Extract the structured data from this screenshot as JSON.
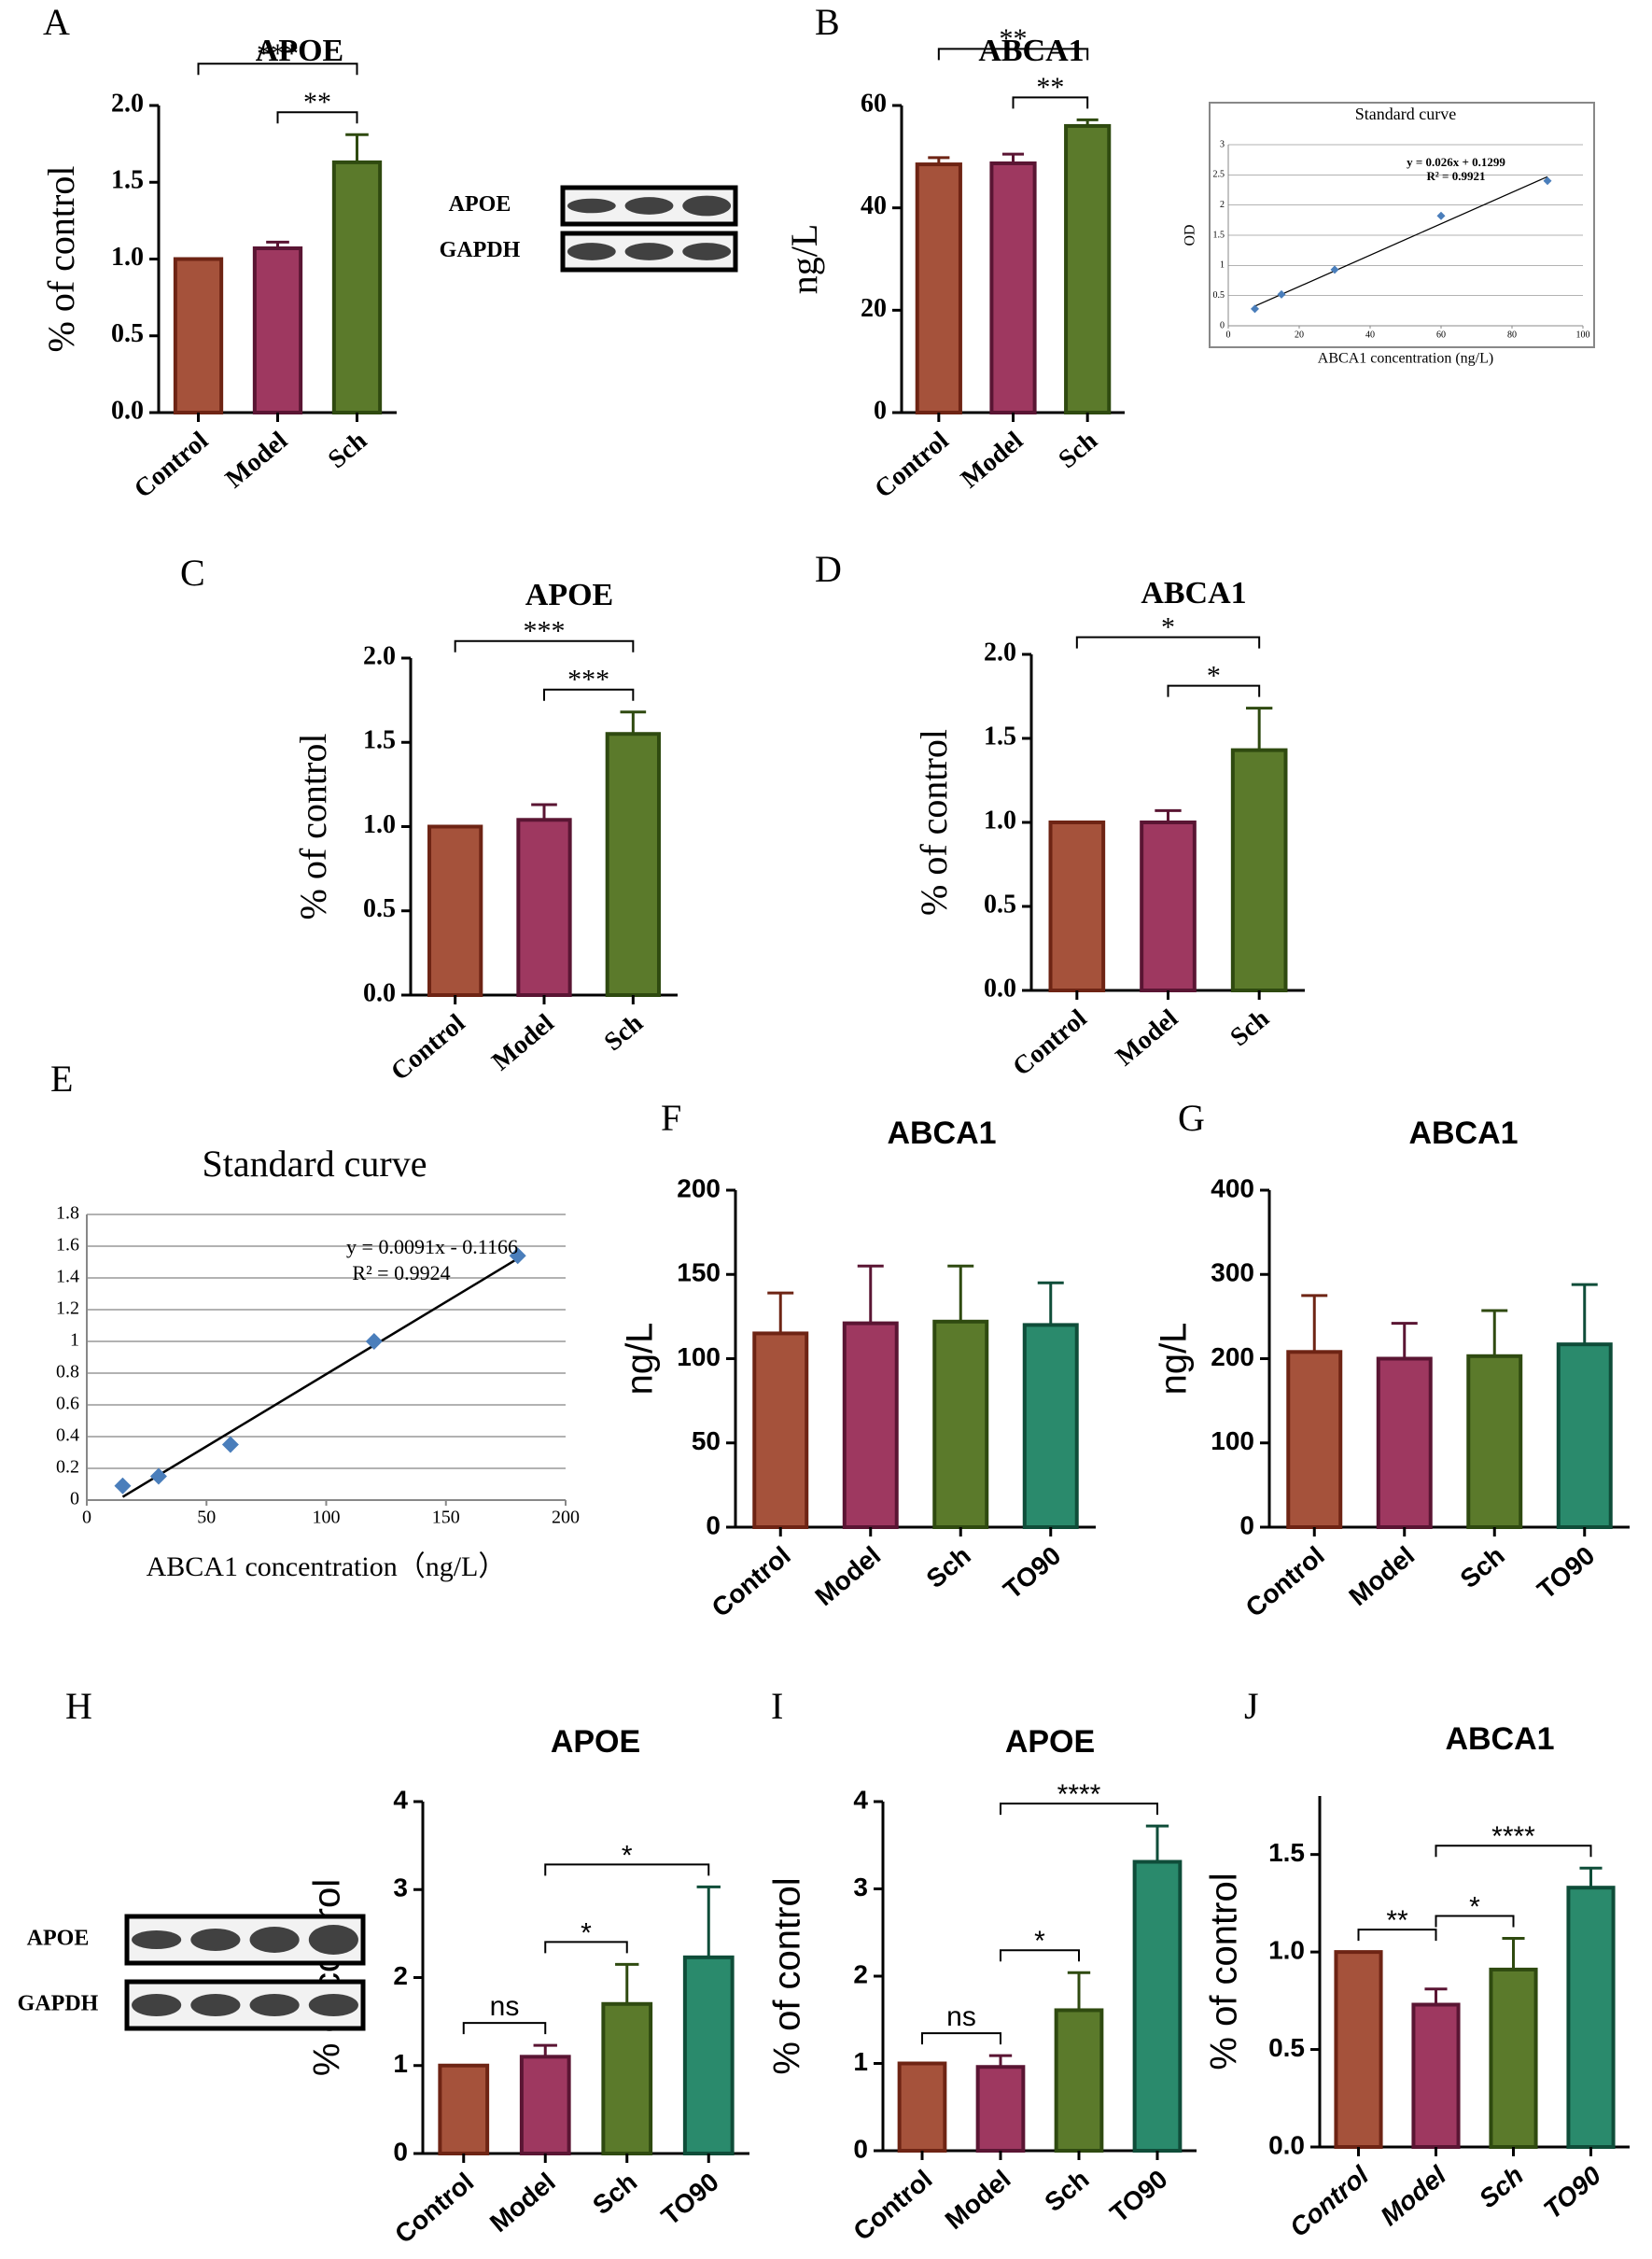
{
  "chart_data": [
    {
      "type": "bar",
      "panel": "A",
      "title": "APOE",
      "ylabel": "% of control",
      "categories": [
        "Control",
        "Model",
        "Sch"
      ],
      "values": [
        1.0,
        1.07,
        1.63
      ],
      "errors": [
        0,
        0.04,
        0.18
      ],
      "colors": [
        "#a5523b",
        "#9e3860",
        "#5b7a2b"
      ],
      "edge_colors": [
        "#6e2414",
        "#5a1533",
        "#2f4a10"
      ],
      "ylim": [
        0,
        2
      ],
      "yticks": [
        {
          "value": 0,
          "label": "0.0"
        },
        0.5,
        {
          "value": 1,
          "label": "1.0"
        },
        1.5,
        {
          "value": 2,
          "label": "2.0"
        }
      ],
      "significance": [
        {
          "from": 0,
          "to": 2,
          "label": "***"
        },
        {
          "from": 1,
          "to": 2,
          "label": "**"
        }
      ],
      "blot_labels": [
        "APOE",
        "GAPDH"
      ]
    },
    {
      "type": "bar",
      "panel": "B",
      "title": "ABCA1",
      "ylabel": "ng/L",
      "categories": [
        "Control",
        "Model",
        "Sch"
      ],
      "values": [
        48.5,
        48.7,
        56
      ],
      "errors": [
        1.3,
        1.8,
        1.2
      ],
      "colors": [
        "#a5523b",
        "#9e3860",
        "#5b7a2b"
      ],
      "edge_colors": [
        "#6e2414",
        "#5a1533",
        "#2f4a10"
      ],
      "ylim": [
        0,
        60
      ],
      "yticks": [
        0,
        20,
        40,
        60
      ],
      "significance": [
        {
          "from": 0,
          "to": 2,
          "label": "**"
        },
        {
          "from": 1,
          "to": 2,
          "label": "**"
        }
      ]
    },
    {
      "type": "scatter",
      "title": "Standard curve",
      "xlabel": "ABCA1 concentration (ng/L)",
      "ylabel": "OD",
      "x": [
        7.5,
        15,
        30,
        60,
        90
      ],
      "values": [
        0.28,
        0.52,
        0.93,
        1.82,
        2.4
      ],
      "color": "#4a7ebb",
      "xlim": [
        0,
        100
      ],
      "xticks": [
        0,
        20,
        40,
        60,
        80,
        100
      ],
      "ylim": [
        0,
        3
      ],
      "yticks": [
        0,
        0.5,
        1,
        1.5,
        2,
        2.5,
        3
      ],
      "grid": true,
      "fit": {
        "slope": 0.026,
        "intercept": 0.1299,
        "label": "y = 0.026x + 0.1299"
      },
      "r2_label": "R² = 0.9921"
    },
    {
      "type": "bar",
      "panel": "C",
      "title": "APOE",
      "ylabel": "% of control",
      "categories": [
        "Control",
        "Model",
        "Sch"
      ],
      "values": [
        1.0,
        1.04,
        1.55
      ],
      "errors": [
        0,
        0.09,
        0.13
      ],
      "colors": [
        "#a5523b",
        "#9e3860",
        "#5b7a2b"
      ],
      "edge_colors": [
        "#6e2414",
        "#5a1533",
        "#2f4a10"
      ],
      "ylim": [
        0,
        2
      ],
      "yticks": [
        {
          "value": 0,
          "label": "0.0"
        },
        0.5,
        {
          "value": 1,
          "label": "1.0"
        },
        1.5,
        {
          "value": 2,
          "label": "2.0"
        }
      ],
      "significance": [
        {
          "from": 0,
          "to": 2,
          "label": "***"
        },
        {
          "from": 1,
          "to": 2,
          "label": "***"
        }
      ]
    },
    {
      "type": "bar",
      "panel": "D",
      "title": "ABCA1",
      "ylabel": "% of control",
      "categories": [
        "Control",
        "Model",
        "Sch"
      ],
      "values": [
        1.0,
        1.0,
        1.43
      ],
      "errors": [
        0,
        0.07,
        0.25
      ],
      "colors": [
        "#a5523b",
        "#9e3860",
        "#5b7a2b"
      ],
      "edge_colors": [
        "#6e2414",
        "#5a1533",
        "#2f4a10"
      ],
      "ylim": [
        0,
        2
      ],
      "yticks": [
        {
          "value": 0,
          "label": "0.0"
        },
        0.5,
        {
          "value": 1,
          "label": "1.0"
        },
        1.5,
        {
          "value": 2,
          "label": "2.0"
        }
      ],
      "significance": [
        {
          "from": 0,
          "to": 2,
          "label": "*"
        },
        {
          "from": 1,
          "to": 2,
          "label": "*"
        }
      ]
    },
    {
      "type": "scatter",
      "panel": "E",
      "title": "Standard curve",
      "xlabel": "ABCA1 concentration（ng/L）",
      "x": [
        15,
        30,
        60,
        120,
        180
      ],
      "values": [
        0.09,
        0.15,
        0.35,
        1.0,
        1.54
      ],
      "color": "#4a7ebb",
      "xlim": [
        0,
        200
      ],
      "xticks": [
        0,
        50,
        100,
        150,
        200
      ],
      "ylim": [
        0,
        1.8
      ],
      "yticks": [
        0,
        0.2,
        0.4,
        0.6,
        0.8,
        1,
        1.2,
        1.4,
        1.6,
        1.8
      ],
      "grid": true,
      "fit": {
        "slope": 0.0091,
        "intercept": -0.1166,
        "label": "y = 0.0091x - 0.1166"
      },
      "r2_label": "R² = 0.9924"
    },
    {
      "type": "bar",
      "panel": "F",
      "title": "ABCA1",
      "ylabel": "ng/L",
      "categories": [
        "Control",
        "Model",
        "Sch",
        "TO90"
      ],
      "values": [
        115,
        121,
        122,
        120
      ],
      "errors": [
        24,
        34,
        33,
        25
      ],
      "colors": [
        "#a5523b",
        "#9e3860",
        "#5b7a2b",
        "#2a8a6c"
      ],
      "edge_colors": [
        "#6e2414",
        "#5a1533",
        "#2f4a10",
        "#0f4d39"
      ],
      "ylim": [
        0,
        200
      ],
      "yticks": [
        0,
        50,
        100,
        150,
        200
      ],
      "significance": []
    },
    {
      "type": "bar",
      "panel": "G",
      "title": "ABCA1",
      "ylabel": "ng/L",
      "categories": [
        "Control",
        "Model",
        "Sch",
        "TO90"
      ],
      "values": [
        208,
        200,
        203,
        217
      ],
      "errors": [
        67,
        42,
        54,
        71
      ],
      "colors": [
        "#a5523b",
        "#9e3860",
        "#5b7a2b",
        "#2a8a6c"
      ],
      "edge_colors": [
        "#6e2414",
        "#5a1533",
        "#2f4a10",
        "#0f4d39"
      ],
      "ylim": [
        0,
        400
      ],
      "yticks": [
        0,
        100,
        200,
        300,
        400
      ],
      "significance": []
    },
    {
      "type": "bar",
      "panel": "H",
      "title": "APOE",
      "ylabel": "% of control",
      "categories": [
        "Control",
        "Model",
        "Sch",
        "TO90"
      ],
      "values": [
        1.0,
        1.1,
        1.7,
        2.23
      ],
      "errors": [
        0,
        0.13,
        0.45,
        0.8
      ],
      "colors": [
        "#a5523b",
        "#9e3860",
        "#5b7a2b",
        "#2a8a6c"
      ],
      "edge_colors": [
        "#6e2414",
        "#5a1533",
        "#2f4a10",
        "#0f4d39"
      ],
      "ylim": [
        0,
        4
      ],
      "yticks": [
        0,
        1,
        2,
        3,
        4
      ],
      "significance": [
        {
          "from": 0,
          "to": 1,
          "label": "ns"
        },
        {
          "from": 1,
          "to": 2,
          "label": "*"
        },
        {
          "from": 1,
          "to": 3,
          "label": "*"
        }
      ],
      "blot_labels": [
        "APOE",
        "GAPDH"
      ]
    },
    {
      "type": "bar",
      "panel": "I",
      "title": "APOE",
      "ylabel": "% of control",
      "categories": [
        "Control",
        "Model",
        "Sch",
        "TO90"
      ],
      "values": [
        1.0,
        0.96,
        1.61,
        3.31
      ],
      "errors": [
        0,
        0.13,
        0.43,
        0.41
      ],
      "colors": [
        "#a5523b",
        "#9e3860",
        "#5b7a2b",
        "#2a8a6c"
      ],
      "edge_colors": [
        "#6e2414",
        "#5a1533",
        "#2f4a10",
        "#0f4d39"
      ],
      "ylim": [
        0,
        4
      ],
      "yticks": [
        0,
        1,
        2,
        3,
        4
      ],
      "significance": [
        {
          "from": 0,
          "to": 1,
          "label": "ns"
        },
        {
          "from": 1,
          "to": 2,
          "label": "*"
        },
        {
          "from": 1,
          "to": 3,
          "label": "****"
        }
      ]
    },
    {
      "type": "bar",
      "panel": "J",
      "title": "ABCA1",
      "ylabel": "% of control",
      "categories": [
        "Control",
        "Model",
        "Sch",
        "TO90"
      ],
      "values": [
        1.0,
        0.73,
        0.91,
        1.33
      ],
      "errors": [
        0,
        0.08,
        0.16,
        0.1
      ],
      "colors": [
        "#a5523b",
        "#9e3860",
        "#5b7a2b",
        "#2a8a6c"
      ],
      "edge_colors": [
        "#6e2414",
        "#5a1533",
        "#2f4a10",
        "#0f4d39"
      ],
      "ylim": [
        0,
        1.8
      ],
      "yticks": [
        {
          "value": 0,
          "label": "0.0"
        },
        0.5,
        {
          "value": 1,
          "label": "1.0"
        },
        1.5
      ],
      "significance": [
        {
          "from": 0,
          "to": 1,
          "label": "**"
        },
        {
          "from": 1,
          "to": 2,
          "label": "*"
        },
        {
          "from": 1,
          "to": 3,
          "label": "****"
        }
      ]
    }
  ]
}
